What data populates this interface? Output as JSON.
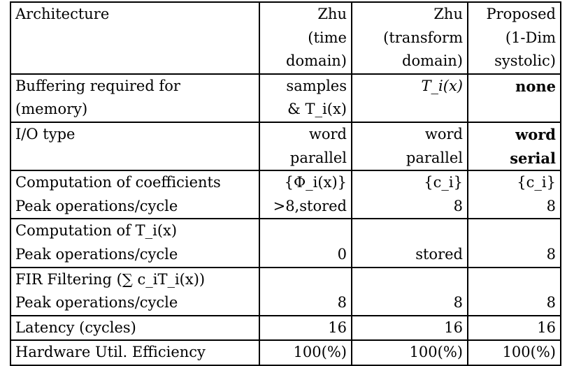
{
  "table": {
    "header": {
      "label": "Architecture",
      "col1": [
        "Zhu",
        "(time",
        "domain)"
      ],
      "col2": [
        "Zhu",
        "(transform",
        "domain)"
      ],
      "col3": [
        "Proposed",
        "(1-Dim",
        "systolic)"
      ]
    },
    "buffering": {
      "label": [
        "Buffering required for",
        "(memory)"
      ],
      "col1": [
        "samples",
        "& T_i(x)"
      ],
      "col2": "T_i(x)",
      "col3": "none"
    },
    "io_type": {
      "label": "I/O type",
      "col1": [
        "word",
        "parallel"
      ],
      "col2": [
        "word",
        "parallel"
      ],
      "col3": [
        "word",
        "serial"
      ]
    },
    "coefficients": {
      "label": [
        "Computation of coefficients",
        "Peak operations/cycle"
      ],
      "col1": [
        "{Φ_i(x)}",
        ">8,stored"
      ],
      "col2": [
        "{c_i}",
        "8"
      ],
      "col3": [
        "{c_i}",
        "8"
      ]
    },
    "ti_computation": {
      "label": [
        "Computation of T_i(x)",
        "Peak operations/cycle"
      ],
      "col1": [
        "",
        "0"
      ],
      "col2": [
        "",
        "stored"
      ],
      "col3": [
        "",
        "8"
      ]
    },
    "fir": {
      "label": [
        "FIR Filtering (∑ c_iT_i(x))",
        "Peak operations/cycle"
      ],
      "col1": [
        "",
        "8"
      ],
      "col2": [
        "",
        "8"
      ],
      "col3": [
        "",
        "8"
      ]
    },
    "latency": {
      "label": [
        "Latency (cycles)",
        "Hardware Util. Efficiency"
      ],
      "col1": [
        "16",
        "100(%)"
      ],
      "col2": [
        "16",
        "100(%)"
      ],
      "col3": [
        "16",
        "100(%)"
      ]
    }
  }
}
